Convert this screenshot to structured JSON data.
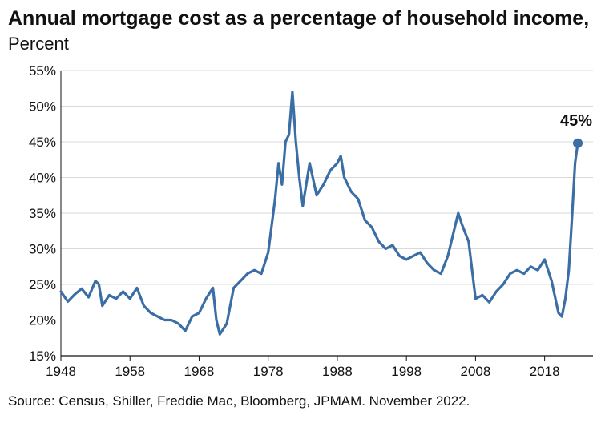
{
  "chart_data": {
    "type": "line",
    "title_bold": "Annual mortgage cost as a percentage of household income",
    "title_sep": ",",
    "title_unit": "Percent",
    "source": "Source: Census, Shiller, Freddie Mac, Bloomberg, JPMAM. November 2022.",
    "xlim": [
      1948,
      2025
    ],
    "ylim": [
      15,
      55
    ],
    "x_ticks": [
      1948,
      1958,
      1968,
      1978,
      1988,
      1998,
      2008,
      2018
    ],
    "y_ticks": [
      15,
      20,
      25,
      30,
      35,
      40,
      45,
      50,
      55
    ],
    "y_tick_labels": [
      "15%",
      "20%",
      "25%",
      "30%",
      "35%",
      "40%",
      "45%",
      "50%",
      "55%"
    ],
    "grid": true,
    "line_color": "#3a6ea5",
    "series": [
      {
        "x": [
          1948,
          1949,
          1950,
          1951,
          1952,
          1953,
          1953.5,
          1954,
          1955,
          1956,
          1957,
          1958,
          1959,
          1960,
          1961,
          1962,
          1963,
          1964,
          1965,
          1966,
          1967,
          1968,
          1969,
          1970,
          1970.5,
          1971,
          1972,
          1973,
          1974,
          1975,
          1976,
          1977,
          1978,
          1979,
          1979.5,
          1980,
          1980.5,
          1981,
          1981.5,
          1982,
          1982.5,
          1983,
          1984,
          1985,
          1986,
          1987,
          1988,
          1988.5,
          1989,
          1990,
          1991,
          1992,
          1993,
          1994,
          1995,
          1996,
          1997,
          1998,
          1999,
          2000,
          2001,
          2002,
          2003,
          2004,
          2005,
          2005.5,
          2006,
          2007,
          2008,
          2009,
          2010,
          2011,
          2012,
          2013,
          2014,
          2015,
          2016,
          2017,
          2018,
          2019,
          2020,
          2020.5,
          2021,
          2021.5,
          2022,
          2022.4,
          2022.8
        ],
        "values": [
          24.0,
          22.6,
          23.6,
          24.4,
          23.2,
          25.5,
          25.0,
          22.0,
          23.5,
          23.0,
          24.0,
          23.0,
          24.5,
          22.0,
          21.0,
          20.5,
          20.0,
          20.0,
          19.5,
          18.5,
          20.5,
          21.0,
          23.0,
          24.5,
          20.0,
          18.0,
          19.5,
          24.5,
          25.5,
          26.5,
          27.0,
          26.5,
          29.5,
          37.0,
          42.0,
          39.0,
          45.0,
          46.0,
          52.0,
          45.0,
          40.0,
          36.0,
          42.0,
          37.5,
          39.0,
          41.0,
          42.0,
          43.0,
          40.0,
          38.0,
          37.0,
          34.0,
          33.0,
          31.0,
          30.0,
          30.5,
          29.0,
          28.5,
          29.0,
          29.5,
          28.0,
          27.0,
          26.5,
          29.0,
          33.0,
          35.0,
          33.5,
          31.0,
          23.0,
          23.5,
          22.5,
          24.0,
          25.0,
          26.5,
          27.0,
          26.5,
          27.5,
          27.0,
          28.5,
          25.5,
          21.0,
          20.5,
          23.0,
          27.0,
          35.0,
          42.0,
          44.8
        ]
      }
    ],
    "annotation": {
      "label": "45%",
      "x": 2022.8,
      "y": 44.8
    }
  }
}
